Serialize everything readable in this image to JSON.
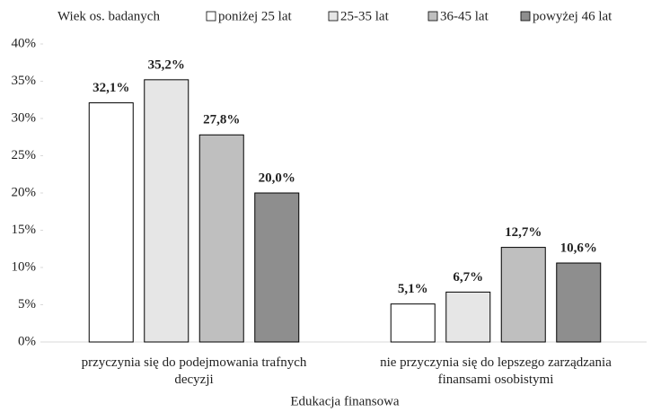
{
  "chart_data": {
    "type": "bar",
    "legend_title": "Wiek os. badanych",
    "xlabel": "Edukacja finansowa",
    "categories": [
      "przyczynia się do podejmowania trafnych\ndecyzji",
      "nie przyczynia się do lepszego zarządzania\nfinansami osobistymi"
    ],
    "series": [
      {
        "name": "poniżej 25 lat",
        "color": "#ffffff",
        "values": [
          32.1,
          5.1
        ],
        "value_labels": [
          "32,1%",
          "5,1%"
        ]
      },
      {
        "name": "25-35 lat",
        "color": "#e6e6e6",
        "values": [
          35.2,
          6.7
        ],
        "value_labels": [
          "35,2%",
          "6,7%"
        ]
      },
      {
        "name": "36-45 lat",
        "color": "#bfbfbf",
        "values": [
          27.8,
          12.7
        ],
        "value_labels": [
          "27,8%",
          "12,7%"
        ]
      },
      {
        "name": "powyżej 46 lat",
        "color": "#8e8e8e",
        "values": [
          20.0,
          10.6
        ],
        "value_labels": [
          "20,0%",
          "10,6%"
        ]
      }
    ],
    "ylim": [
      0,
      40
    ],
    "yticks": [
      {
        "value": 0,
        "label": "0%"
      },
      {
        "value": 5,
        "label": "5%"
      },
      {
        "value": 10,
        "label": "10%"
      },
      {
        "value": 15,
        "label": "15%"
      },
      {
        "value": 20,
        "label": "20%"
      },
      {
        "value": 25,
        "label": "25%"
      },
      {
        "value": 30,
        "label": "30%"
      },
      {
        "value": 35,
        "label": "35%"
      },
      {
        "value": 40,
        "label": "40%"
      }
    ],
    "legend": "top"
  }
}
